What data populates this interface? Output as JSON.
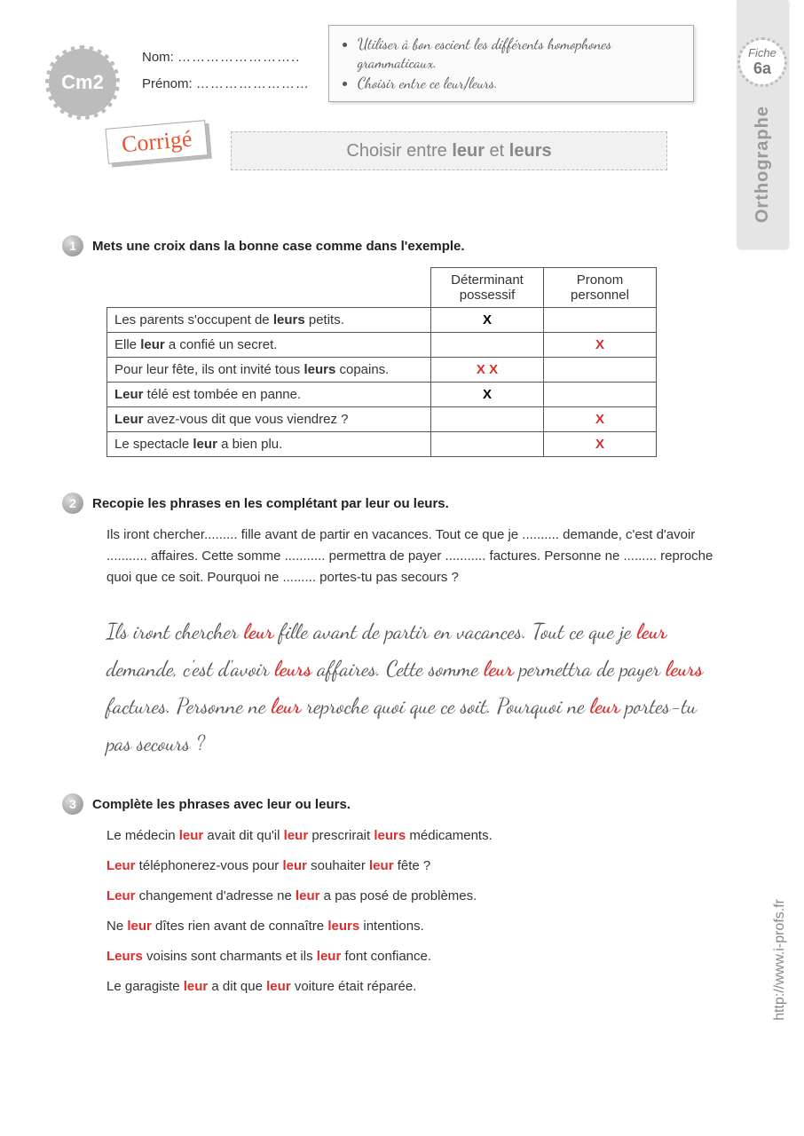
{
  "grade": "Cm2",
  "name_label": "Nom:",
  "firstname_label": "Prénom:",
  "dots": "……………………..",
  "dots2": "……………………",
  "objectives": [
    "Utiliser à bon escient les différents homophones grammaticaux.",
    "Choisir entre ce leur/leurs."
  ],
  "fiche_label": "Fiche",
  "fiche_num": "6a",
  "subject": "Orthographe",
  "tag": "Corrigé",
  "title_pre": "Choisir entre ",
  "title_b1": "leur",
  "title_mid": " et ",
  "title_b2": "leurs",
  "ex1": {
    "num": "1",
    "title": "Mets une croix dans la bonne case comme dans l'exemple.",
    "col1": "Déterminant possessif",
    "col2": "Pronom personnel",
    "rows": [
      {
        "html": "Les parents s'occupent de <b>leurs</b> petits.",
        "c1": "X",
        "c2": ""
      },
      {
        "html": "Elle <b>leur</b> a confié un secret.",
        "c1": "",
        "c2": "X"
      },
      {
        "html": "Pour leur fête, ils ont invité tous <b>leurs</b> copains.",
        "c1": "X X",
        "c2": ""
      },
      {
        "html": "<b>Leur</b> télé est tombée en panne.",
        "c1": "X",
        "c2": ""
      },
      {
        "html": "<b>Leur</b> avez-vous dit  que vous viendrez ?",
        "c1": "",
        "c2": "X"
      },
      {
        "html": "Le spectacle <b>leur</b> a bien plu.",
        "c1": "",
        "c2": "X"
      }
    ]
  },
  "ex2": {
    "num": "2",
    "title": "Recopie les phrases en les complétant par leur ou leurs.",
    "prompt": "Ils iront chercher......... fille avant de partir en vacances. Tout ce que je .......... demande, c'est d'avoir ........... affaires. Cette somme ........... permettra de payer ........... factures. Personne ne ......... reproche quoi que ce soit. Pourquoi ne ......... portes-tu pas secours ?",
    "answer_parts": [
      "Ils iront chercher ",
      {
        "r": "leur"
      },
      " fille avant de partir en vacances. Tout ce que je ",
      {
        "r": "leur"
      },
      " demande, c'est d'avoir ",
      {
        "r": "leurs"
      },
      " affaires. Cette somme ",
      {
        "r": "leur"
      },
      " permettra de payer ",
      {
        "r": "leurs"
      },
      " factures. Personne ne ",
      {
        "r": "leur"
      },
      " reproche quoi que ce soit. Pourquoi ne ",
      {
        "r": "leur"
      },
      " portes-tu pas secours ?"
    ]
  },
  "ex3": {
    "num": "3",
    "title": "Complète les phrases avec leur ou leurs.",
    "lines": [
      [
        "Le médecin ",
        {
          "r": "leur"
        },
        " avait dit qu'il ",
        {
          "r": "leur"
        },
        " prescrirait ",
        {
          "r": "leurs"
        },
        " médicaments."
      ],
      [
        {
          "r": "Leur"
        },
        " téléphonerez-vous pour ",
        {
          "r": "leur"
        },
        " souhaiter ",
        {
          "r": "leur"
        },
        " fête ?"
      ],
      [
        {
          "r": "Leur"
        },
        " changement d'adresse ne ",
        {
          "r": "leur"
        },
        " a pas posé de problèmes."
      ],
      [
        "Ne ",
        {
          "r": "leur"
        },
        " dîtes rien avant de connaître ",
        {
          "r": "leurs"
        },
        " intentions."
      ],
      [
        {
          "r": "Leurs"
        },
        " voisins sont charmants et ils ",
        {
          "r": "leur"
        },
        " font confiance."
      ],
      [
        "Le garagiste ",
        {
          "r": "leur"
        },
        " a dit que ",
        {
          "r": "leur"
        },
        " voiture était réparée."
      ]
    ]
  },
  "site": "http://www.i-profs.fr",
  "colors": {
    "accent_red": "#d92e2e",
    "tag_orange": "#e2572e",
    "grey_bg": "#e5e5e5",
    "text_grey": "#888"
  }
}
